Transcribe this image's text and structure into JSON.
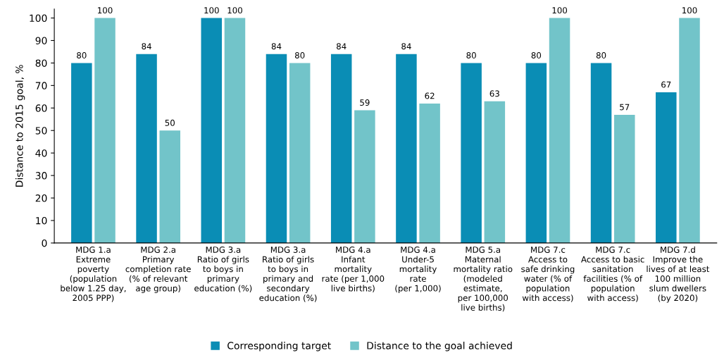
{
  "chart_data": {
    "type": "bar",
    "ylabel": "Distance to 2015 goal, %",
    "categories": [
      "MDG 1.a\nExtreme\npoverty\n(population\nbelow 1.25 day,\n2005 PPP)",
      "MDG 2.a\nPrimary\ncompletion rate\n(% of relevant\nage group)",
      "MDG 3.a\nRatio of girls\nto boys in\nprimary\neducation (%)",
      "MDG 3.a\nRatio of girls\nto boys in\nprimary and\nsecondary\neducation (%)",
      "MDG 4.a\nInfant\nmortality\nrate (per 1,000\nlive births)",
      "MDG 4.a\nUnder-5\nmortality\nrate\n(per 1,000)",
      "MDG 5.a\nMaternal\nmortality ratio\n(modeled\nestimate,\nper 100,000\nlive births)",
      "MDG 7.c\nAccess to\nsafe drinking\nwater (% of\npopulation\nwith access)",
      "MDG 7.c\nAccess to basic\nsanitation\nfacilities (% of\npopulation\nwith access)",
      "MDG 7.d\nImprove the\nlives of at least\n100 million\nslum dwellers\n(by 2020)"
    ],
    "series": [
      {
        "name": "Corresponding target",
        "color": "#0a8db5",
        "values": [
          80,
          84,
          100,
          84,
          84,
          84,
          80,
          80,
          80,
          67
        ]
      },
      {
        "name": "Distance to the goal achieved",
        "color": "#72c4c9",
        "values": [
          100,
          50,
          100,
          80,
          59,
          62,
          63,
          100,
          57,
          100
        ]
      }
    ],
    "ylim": [
      0,
      104
    ],
    "yticks": [
      0,
      10,
      20,
      30,
      40,
      50,
      60,
      70,
      80,
      90,
      100
    ],
    "data_labels": true,
    "grid": false,
    "legend": "bottom"
  }
}
